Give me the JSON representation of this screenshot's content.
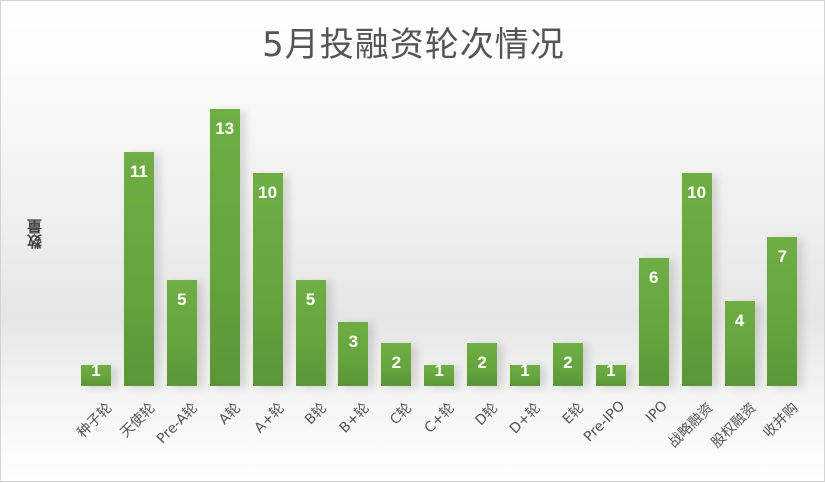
{
  "chart_data": {
    "type": "bar",
    "title": "5月投融资轮次情况",
    "xlabel": "",
    "ylabel": "数量",
    "categories": [
      "种子轮",
      "天使轮",
      "Pre-A轮",
      "A轮",
      "A+轮",
      "B轮",
      "B+轮",
      "C轮",
      "C+轮",
      "D轮",
      "D+轮",
      "E轮",
      "Pre-IPO",
      "IPO",
      "战略融资",
      "股权融资",
      "收并购"
    ],
    "values": [
      1,
      11,
      5,
      13,
      10,
      5,
      3,
      2,
      1,
      2,
      1,
      2,
      1,
      6,
      10,
      4,
      7
    ],
    "ylim": [
      0,
      13
    ],
    "grid": false,
    "legend": null,
    "data_labels": true,
    "bar_color": "#66a53e"
  }
}
